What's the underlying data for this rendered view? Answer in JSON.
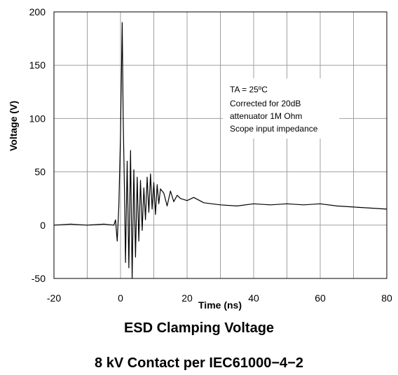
{
  "chart_data": {
    "type": "line",
    "xlabel": "Time  (ns)",
    "ylabel": "Voltage (V)",
    "xlim": [
      -20,
      80
    ],
    "ylim": [
      -50,
      200
    ],
    "x_ticks": [
      "-20",
      "0",
      "20",
      "40",
      "60",
      "80"
    ],
    "y_ticks": [
      "-50",
      "0",
      "50",
      "100",
      "150",
      "200"
    ],
    "grid": true,
    "annotation": [
      "TA = 25ºC",
      "Corrected for 20dB",
      "attenuator 1M Ohm",
      "Scope input impedance"
    ],
    "series": [
      {
        "color": "#000000",
        "x": [
          -20,
          -15,
          -10,
          -5,
          -2,
          -1.5,
          -1,
          -0.5,
          0,
          0.5,
          0.8,
          1.2,
          1.5,
          2,
          2.5,
          3,
          3.5,
          4,
          4.5,
          5,
          5.5,
          6,
          6.5,
          7,
          7.5,
          8,
          8.5,
          9,
          9.5,
          10,
          10.5,
          11,
          11.5,
          12,
          13,
          14,
          15,
          16,
          17,
          18,
          20,
          22,
          25,
          30,
          35,
          40,
          45,
          50,
          55,
          60,
          65,
          70,
          75,
          80
        ],
        "y": [
          0,
          1,
          0,
          1,
          0,
          5,
          -15,
          18,
          85,
          190,
          100,
          30,
          -35,
          60,
          -40,
          70,
          -50,
          52,
          -30,
          45,
          -15,
          42,
          -5,
          35,
          5,
          45,
          12,
          48,
          15,
          40,
          10,
          38,
          20,
          34,
          30,
          18,
          32,
          22,
          28,
          25,
          23,
          26,
          21,
          19,
          18,
          20,
          19,
          20,
          19,
          20,
          18,
          17,
          16,
          15
        ]
      }
    ]
  },
  "captions": {
    "title": "ESD Clamping Voltage",
    "subtitle": "8 kV Contact per IEC61000−4−2"
  }
}
